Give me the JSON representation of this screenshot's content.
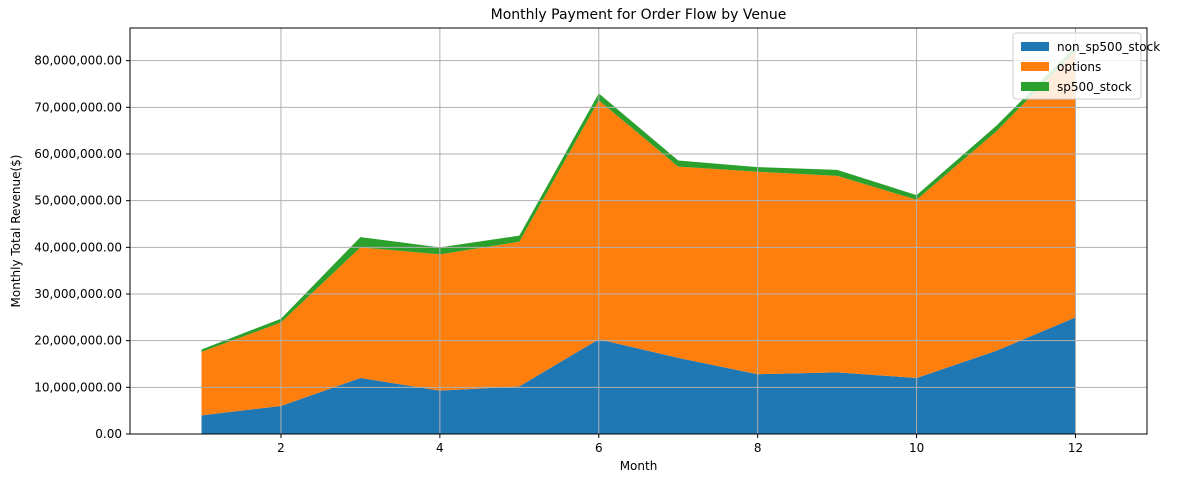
{
  "chart_data": {
    "type": "area",
    "stacked": true,
    "title": "Monthly Payment for Order Flow by Venue",
    "xlabel": "Month",
    "ylabel": "Monthly Total Revenue($)",
    "x": [
      1,
      2,
      3,
      4,
      5,
      6,
      7,
      8,
      9,
      10,
      11,
      12
    ],
    "xlim": [
      0.1,
      12.9
    ],
    "ylim": [
      0,
      87000000
    ],
    "xticks": [
      2,
      4,
      6,
      8,
      10,
      12
    ],
    "xtick_labels": [
      "2",
      "4",
      "6",
      "8",
      "10",
      "12"
    ],
    "yticks": [
      0,
      10000000,
      20000000,
      30000000,
      40000000,
      50000000,
      60000000,
      70000000,
      80000000
    ],
    "ytick_labels": [
      "0.00",
      "10,000,000.00",
      "20,000,000.00",
      "30,000,000.00",
      "40,000,000.00",
      "50,000,000.00",
      "60,000,000.00",
      "70,000,000.00",
      "80,000,000.00"
    ],
    "grid": true,
    "legend_position": "top-right",
    "series": [
      {
        "name": "non_sp500_stock",
        "color": "#1f77b4",
        "values": [
          4000000,
          6000000,
          12000000,
          9300000,
          10200000,
          20300000,
          16300000,
          12800000,
          13200000,
          12000000,
          17800000,
          25000000
        ]
      },
      {
        "name": "options",
        "color": "#ff7f0e",
        "values": [
          13600000,
          17900000,
          28000000,
          29200000,
          31000000,
          51200000,
          41000000,
          43400000,
          42100000,
          38200000,
          47000000,
          57000000
        ]
      },
      {
        "name": "sp500_stock",
        "color": "#2ca02c",
        "values": [
          500000,
          800000,
          2200000,
          1500000,
          1300000,
          1500000,
          1300000,
          1000000,
          1300000,
          1000000,
          1200000,
          1000000
        ]
      }
    ]
  }
}
